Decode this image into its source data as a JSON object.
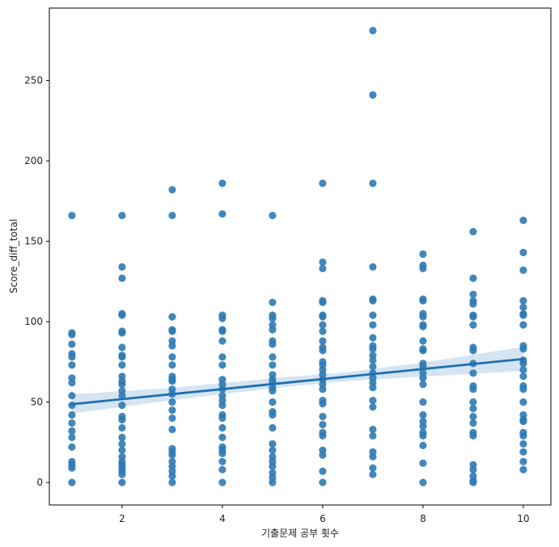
{
  "chart_data": {
    "type": "scatter",
    "title": "",
    "xlabel": "기출문제 공부 횟수",
    "ylabel": "Score_diff_total",
    "xlim": [
      0.55,
      10.55
    ],
    "ylim": [
      -14,
      295
    ],
    "xticks": [
      2,
      4,
      6,
      8,
      10
    ],
    "yticks": [
      0,
      50,
      100,
      150,
      200,
      250
    ],
    "grid": false,
    "legend": "none",
    "colors": {
      "points": "#2e7ab4",
      "line": "#1f70b1",
      "band": "#c7dbee"
    },
    "series": [
      {
        "points": [
          [
            1,
            166
          ],
          [
            1,
            93
          ],
          [
            1,
            92
          ],
          [
            1,
            86
          ],
          [
            1,
            80
          ],
          [
            1,
            78
          ],
          [
            1,
            73
          ],
          [
            1,
            65
          ],
          [
            1,
            62
          ],
          [
            1,
            54
          ],
          [
            1,
            48
          ],
          [
            1,
            42
          ],
          [
            1,
            37
          ],
          [
            1,
            32
          ],
          [
            1,
            28
          ],
          [
            1,
            22
          ],
          [
            1,
            13
          ],
          [
            1,
            11
          ],
          [
            1,
            9
          ],
          [
            1,
            0
          ],
          [
            2,
            166
          ],
          [
            2,
            134
          ],
          [
            2,
            127
          ],
          [
            2,
            105
          ],
          [
            2,
            104
          ],
          [
            2,
            94
          ],
          [
            2,
            93
          ],
          [
            2,
            84
          ],
          [
            2,
            79
          ],
          [
            2,
            78
          ],
          [
            2,
            73
          ],
          [
            2,
            66
          ],
          [
            2,
            63
          ],
          [
            2,
            61
          ],
          [
            2,
            57
          ],
          [
            2,
            54
          ],
          [
            2,
            48
          ],
          [
            2,
            41
          ],
          [
            2,
            39
          ],
          [
            2,
            34
          ],
          [
            2,
            28
          ],
          [
            2,
            24
          ],
          [
            2,
            20
          ],
          [
            2,
            16
          ],
          [
            2,
            13
          ],
          [
            2,
            11
          ],
          [
            2,
            9
          ],
          [
            2,
            7
          ],
          [
            2,
            5
          ],
          [
            2,
            0
          ],
          [
            3,
            182
          ],
          [
            3,
            166
          ],
          [
            3,
            103
          ],
          [
            3,
            95
          ],
          [
            3,
            94
          ],
          [
            3,
            88
          ],
          [
            3,
            85
          ],
          [
            3,
            78
          ],
          [
            3,
            73
          ],
          [
            3,
            66
          ],
          [
            3,
            64
          ],
          [
            3,
            63
          ],
          [
            3,
            58
          ],
          [
            3,
            55
          ],
          [
            3,
            50
          ],
          [
            3,
            45
          ],
          [
            3,
            40
          ],
          [
            3,
            33
          ],
          [
            3,
            21
          ],
          [
            3,
            19
          ],
          [
            3,
            17
          ],
          [
            3,
            13
          ],
          [
            3,
            10
          ],
          [
            3,
            7
          ],
          [
            3,
            4
          ],
          [
            3,
            0
          ],
          [
            4,
            186
          ],
          [
            4,
            167
          ],
          [
            4,
            104
          ],
          [
            4,
            102
          ],
          [
            4,
            95
          ],
          [
            4,
            94
          ],
          [
            4,
            88
          ],
          [
            4,
            78
          ],
          [
            4,
            73
          ],
          [
            4,
            64
          ],
          [
            4,
            61
          ],
          [
            4,
            58
          ],
          [
            4,
            54
          ],
          [
            4,
            51
          ],
          [
            4,
            48
          ],
          [
            4,
            42
          ],
          [
            4,
            40
          ],
          [
            4,
            34
          ],
          [
            4,
            28
          ],
          [
            4,
            22
          ],
          [
            4,
            20
          ],
          [
            4,
            18
          ],
          [
            4,
            13
          ],
          [
            4,
            8
          ],
          [
            4,
            0
          ],
          [
            5,
            166
          ],
          [
            5,
            112
          ],
          [
            5,
            104
          ],
          [
            5,
            102
          ],
          [
            5,
            98
          ],
          [
            5,
            95
          ],
          [
            5,
            88
          ],
          [
            5,
            86
          ],
          [
            5,
            78
          ],
          [
            5,
            73
          ],
          [
            5,
            67
          ],
          [
            5,
            64
          ],
          [
            5,
            62
          ],
          [
            5,
            59
          ],
          [
            5,
            57
          ],
          [
            5,
            50
          ],
          [
            5,
            44
          ],
          [
            5,
            42
          ],
          [
            5,
            34
          ],
          [
            5,
            24
          ],
          [
            5,
            20
          ],
          [
            5,
            16
          ],
          [
            5,
            13
          ],
          [
            5,
            10
          ],
          [
            5,
            6
          ],
          [
            5,
            3
          ],
          [
            5,
            0
          ],
          [
            6,
            186
          ],
          [
            6,
            137
          ],
          [
            6,
            133
          ],
          [
            6,
            113
          ],
          [
            6,
            112
          ],
          [
            6,
            104
          ],
          [
            6,
            103
          ],
          [
            6,
            98
          ],
          [
            6,
            94
          ],
          [
            6,
            88
          ],
          [
            6,
            84
          ],
          [
            6,
            82
          ],
          [
            6,
            75
          ],
          [
            6,
            73
          ],
          [
            6,
            70
          ],
          [
            6,
            67
          ],
          [
            6,
            64
          ],
          [
            6,
            61
          ],
          [
            6,
            58
          ],
          [
            6,
            51
          ],
          [
            6,
            49
          ],
          [
            6,
            41
          ],
          [
            6,
            36
          ],
          [
            6,
            31
          ],
          [
            6,
            29
          ],
          [
            6,
            20
          ],
          [
            6,
            17
          ],
          [
            6,
            7
          ],
          [
            6,
            0
          ],
          [
            7,
            281
          ],
          [
            7,
            241
          ],
          [
            7,
            186
          ],
          [
            7,
            134
          ],
          [
            7,
            114
          ],
          [
            7,
            113
          ],
          [
            7,
            104
          ],
          [
            7,
            98
          ],
          [
            7,
            90
          ],
          [
            7,
            85
          ],
          [
            7,
            83
          ],
          [
            7,
            79
          ],
          [
            7,
            76
          ],
          [
            7,
            72
          ],
          [
            7,
            68
          ],
          [
            7,
            65
          ],
          [
            7,
            62
          ],
          [
            7,
            59
          ],
          [
            7,
            51
          ],
          [
            7,
            47
          ],
          [
            7,
            33
          ],
          [
            7,
            29
          ],
          [
            7,
            19
          ],
          [
            7,
            16
          ],
          [
            7,
            9
          ],
          [
            7,
            5
          ],
          [
            8,
            142
          ],
          [
            8,
            135
          ],
          [
            8,
            133
          ],
          [
            8,
            114
          ],
          [
            8,
            113
          ],
          [
            8,
            105
          ],
          [
            8,
            103
          ],
          [
            8,
            98
          ],
          [
            8,
            97
          ],
          [
            8,
            88
          ],
          [
            8,
            83
          ],
          [
            8,
            82
          ],
          [
            8,
            74
          ],
          [
            8,
            72
          ],
          [
            8,
            68
          ],
          [
            8,
            65
          ],
          [
            8,
            61
          ],
          [
            8,
            50
          ],
          [
            8,
            42
          ],
          [
            8,
            38
          ],
          [
            8,
            35
          ],
          [
            8,
            31
          ],
          [
            8,
            29
          ],
          [
            8,
            23
          ],
          [
            8,
            12
          ],
          [
            8,
            0
          ],
          [
            9,
            156
          ],
          [
            9,
            127
          ],
          [
            9,
            117
          ],
          [
            9,
            113
          ],
          [
            9,
            111
          ],
          [
            9,
            104
          ],
          [
            9,
            103
          ],
          [
            9,
            98
          ],
          [
            9,
            84
          ],
          [
            9,
            82
          ],
          [
            9,
            74
          ],
          [
            9,
            68
          ],
          [
            9,
            60
          ],
          [
            9,
            58
          ],
          [
            9,
            50
          ],
          [
            9,
            46
          ],
          [
            9,
            41
          ],
          [
            9,
            37
          ],
          [
            9,
            31
          ],
          [
            9,
            29
          ],
          [
            9,
            11
          ],
          [
            9,
            8
          ],
          [
            9,
            4
          ],
          [
            9,
            1
          ],
          [
            9,
            0
          ],
          [
            10,
            163
          ],
          [
            10,
            143
          ],
          [
            10,
            132
          ],
          [
            10,
            113
          ],
          [
            10,
            109
          ],
          [
            10,
            105
          ],
          [
            10,
            104
          ],
          [
            10,
            98
          ],
          [
            10,
            85
          ],
          [
            10,
            83
          ],
          [
            10,
            76
          ],
          [
            10,
            74
          ],
          [
            10,
            70
          ],
          [
            10,
            66
          ],
          [
            10,
            60
          ],
          [
            10,
            58
          ],
          [
            10,
            50
          ],
          [
            10,
            42
          ],
          [
            10,
            39
          ],
          [
            10,
            38
          ],
          [
            10,
            31
          ],
          [
            10,
            29
          ],
          [
            10,
            24
          ],
          [
            10,
            19
          ],
          [
            10,
            13
          ],
          [
            10,
            8
          ]
        ]
      }
    ],
    "regression": {
      "x": [
        1,
        10
      ],
      "y": [
        48.7,
        76.8
      ],
      "ci": [
        [
          1,
          42.9,
          54.8
        ],
        [
          3,
          51.2,
          58.8
        ],
        [
          5,
          58.6,
          64.8
        ],
        [
          6.5,
          63.1,
          68.6
        ],
        [
          8,
          65.8,
          74.6
        ],
        [
          10,
          69.4,
          84.3
        ]
      ]
    }
  }
}
